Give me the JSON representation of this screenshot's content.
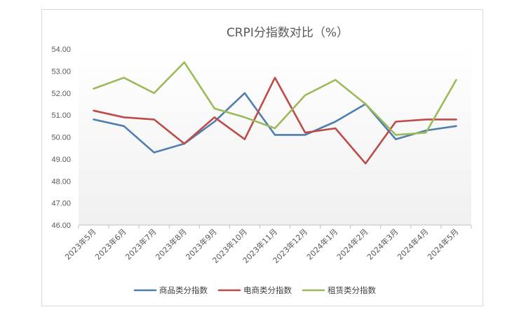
{
  "chart_data": {
    "type": "line",
    "title": "CRPI分指数对比（%）",
    "categories": [
      "2023年5月",
      "2023年6月",
      "2023年7月",
      "2023年8月",
      "2023年9月",
      "2023年10月",
      "2023年11月",
      "2023年12月",
      "2024年1月",
      "2024年2月",
      "2024年3月",
      "2024年4月",
      "2024年5月"
    ],
    "ylim": [
      46.0,
      54.0
    ],
    "yticks": [
      "46.00",
      "47.00",
      "48.00",
      "49.00",
      "50.00",
      "51.00",
      "52.00",
      "53.00",
      "54.00"
    ],
    "ytick_values": [
      46,
      47,
      48,
      49,
      50,
      51,
      52,
      53,
      54
    ],
    "legend_position": "bottom",
    "grid": false,
    "series": [
      {
        "name": "商品类分指数",
        "color": "#4e7fae",
        "values": [
          50.8,
          50.5,
          49.3,
          49.7,
          50.7,
          52.0,
          50.1,
          50.1,
          50.7,
          51.5,
          49.9,
          50.3,
          50.5
        ]
      },
      {
        "name": "电商类分指数",
        "color": "#bd4b48",
        "values": [
          51.2,
          50.9,
          50.8,
          49.7,
          50.9,
          49.9,
          52.7,
          50.2,
          50.4,
          48.8,
          50.7,
          50.8,
          50.8
        ]
      },
      {
        "name": "租赁类分指数",
        "color": "#9bbb59",
        "values": [
          52.2,
          52.7,
          52.0,
          53.4,
          51.3,
          50.9,
          50.4,
          51.9,
          52.6,
          51.5,
          50.1,
          50.2,
          52.6
        ]
      }
    ]
  }
}
